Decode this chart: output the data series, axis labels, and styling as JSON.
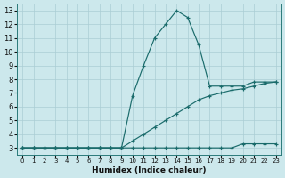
{
  "xlabel": "Humidex (Indice chaleur)",
  "bg_color": "#cce8ec",
  "grid_color": "#aacdd4",
  "line_color": "#1a6b6b",
  "xlim": [
    -0.5,
    23.5
  ],
  "ylim": [
    2.5,
    13.5
  ],
  "xticks": [
    0,
    1,
    2,
    3,
    4,
    5,
    6,
    7,
    8,
    9,
    10,
    11,
    12,
    13,
    14,
    15,
    16,
    17,
    18,
    19,
    20,
    21,
    22,
    23
  ],
  "yticks": [
    3,
    4,
    5,
    6,
    7,
    8,
    9,
    10,
    11,
    12,
    13
  ],
  "series": [
    {
      "x": [
        0,
        1,
        2,
        3,
        4,
        5,
        6,
        7,
        8,
        9,
        10,
        11,
        12,
        13,
        14,
        15,
        16,
        17,
        18,
        19,
        20,
        21,
        22,
        23
      ],
      "y": [
        3,
        3,
        3,
        3,
        3,
        3,
        3,
        3,
        3,
        3,
        3,
        3,
        3,
        3,
        3,
        3,
        3,
        3,
        3,
        3,
        3.3,
        3.3,
        3.3,
        3.3
      ]
    },
    {
      "x": [
        0,
        1,
        2,
        3,
        4,
        5,
        6,
        7,
        8,
        9,
        10,
        11,
        12,
        13,
        14,
        15,
        16,
        17,
        18,
        19,
        20,
        21,
        22,
        23
      ],
      "y": [
        3,
        3,
        3,
        3,
        3,
        3,
        3,
        3,
        3,
        3,
        3.5,
        4.0,
        4.5,
        5.0,
        5.5,
        6.0,
        6.5,
        6.8,
        7.0,
        7.2,
        7.3,
        7.5,
        7.7,
        7.8
      ]
    },
    {
      "x": [
        0,
        1,
        2,
        3,
        4,
        5,
        6,
        7,
        8,
        9,
        10,
        11,
        12,
        13,
        14,
        15,
        16,
        17,
        18,
        19,
        20,
        21,
        22,
        23
      ],
      "y": [
        3,
        3,
        3,
        3,
        3,
        3,
        3,
        3,
        3,
        3,
        6.8,
        9.0,
        11.0,
        12.0,
        13.0,
        12.5,
        10.5,
        7.5,
        7.5,
        7.5,
        7.5,
        7.8,
        7.8,
        7.8
      ]
    }
  ]
}
